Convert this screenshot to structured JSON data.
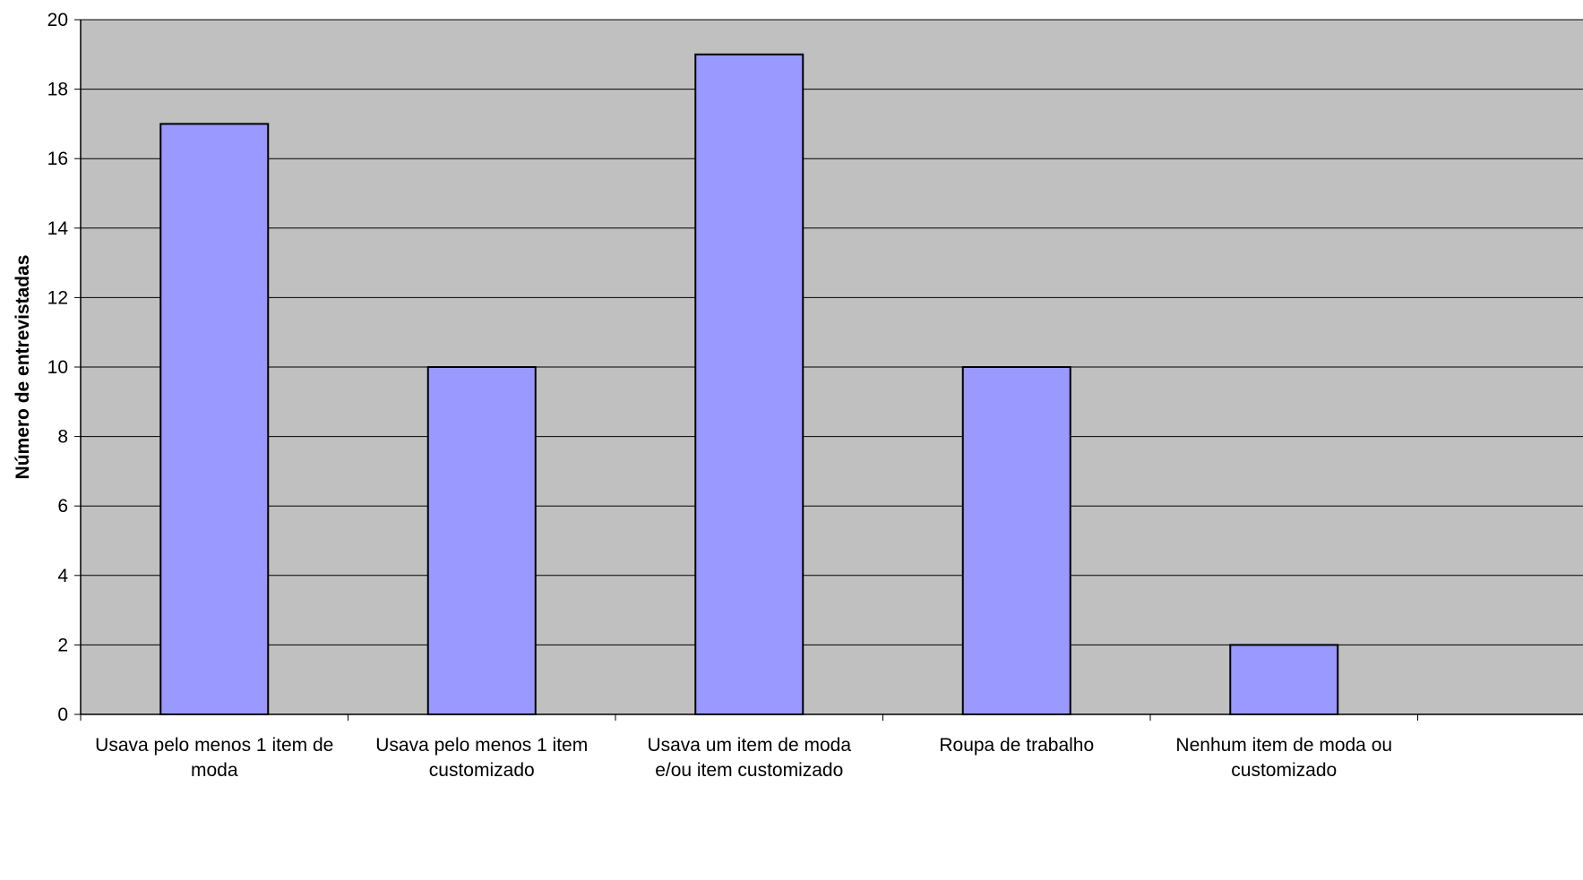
{
  "chart_data": {
    "type": "bar",
    "categories": [
      [
        "Usava pelo menos 1 item de",
        "moda"
      ],
      [
        "Usava pelo menos 1 item",
        "customizado"
      ],
      [
        "Usava um item de moda",
        "e/ou item customizado"
      ],
      [
        "Roupa de trabalho"
      ],
      [
        "Nenhum item de moda ou",
        "customizado"
      ]
    ],
    "values": [
      17,
      10,
      19,
      10,
      2
    ],
    "xlabel": "",
    "ylabel": "Número de entrevistadas",
    "ylim": [
      0,
      20
    ],
    "yticks": [
      0,
      2,
      4,
      6,
      8,
      10,
      12,
      14,
      16,
      18,
      20
    ],
    "grid": true,
    "colors": {
      "plot_background": "#C0C0C0",
      "bar_fill": "#9999FF",
      "bar_stroke": "#000000",
      "gridline": "#000000"
    }
  }
}
